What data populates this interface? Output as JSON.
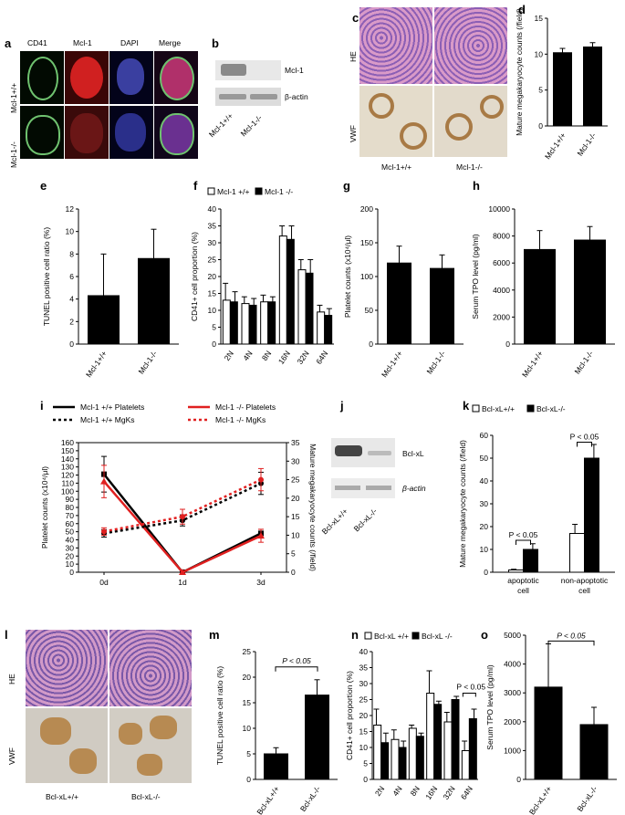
{
  "panel_labels": {
    "a": "a",
    "b": "b",
    "c": "c",
    "d": "d",
    "e": "e",
    "f": "f",
    "g": "g",
    "h": "h",
    "i": "i",
    "j": "j",
    "k": "k",
    "l": "l",
    "m": "m",
    "n": "n",
    "o": "o"
  },
  "panel_a": {
    "columns": [
      "CD41",
      "Mcl-1",
      "DAPI",
      "Merge"
    ],
    "rows": [
      "Mcl-1+/+",
      "Mcl-1-/-"
    ]
  },
  "panel_b": {
    "bands": [
      "Mcl-1",
      "β-actin"
    ],
    "lanes": [
      "Mcl-1+/+",
      "Mcl-1-/-"
    ]
  },
  "panel_c": {
    "rows": [
      "HE",
      "VWF"
    ],
    "columns": [
      "Mcl-1+/+",
      "Mcl-1-/-"
    ]
  },
  "panel_j": {
    "bands": [
      "Bcl-xL",
      "β-actin"
    ],
    "lanes": [
      "Bcl-xL+/+",
      "Bcl-xL-/-"
    ]
  },
  "panel_l": {
    "rows": [
      "HE",
      "VWF"
    ],
    "columns": [
      "Bcl-xL+/+",
      "Bcl-xL-/-"
    ]
  },
  "colors": {
    "bar_dark": "#000000",
    "bar_light": "#ffffff",
    "mcl_red": "#e02020",
    "he_pink": "#c77ab8",
    "vwf_brown": "#b08a55"
  },
  "chart_data": [
    {
      "id": "d",
      "type": "bar",
      "categories": [
        "Mcl-1+/+",
        "Mcl-1-/-"
      ],
      "values": [
        10.2,
        11.0
      ],
      "errors": [
        0.6,
        0.6
      ],
      "ylabel": "Mature megakaryocyte counts (/field)",
      "ylim": [
        0,
        15
      ],
      "yticks": [
        0,
        5,
        10,
        15
      ],
      "colors": [
        "#000000",
        "#000000"
      ]
    },
    {
      "id": "e",
      "type": "bar",
      "categories": [
        "Mcl-1+/+",
        "Mcl-1-/-"
      ],
      "values": [
        4.3,
        7.6
      ],
      "errors": [
        3.7,
        2.6
      ],
      "ylabel": "TUNEL positive cell ratio (%)",
      "ylim": [
        0,
        12
      ],
      "yticks": [
        0,
        2,
        4,
        6,
        8,
        10,
        12
      ],
      "colors": [
        "#000000",
        "#000000"
      ]
    },
    {
      "id": "f",
      "type": "bar",
      "categories": [
        "2N",
        "4N",
        "8N",
        "16N",
        "32N",
        "64N"
      ],
      "legend": [
        "Mcl-1 +/+",
        "Mcl-1 -/-"
      ],
      "series": [
        {
          "name": "Mcl-1 +/+",
          "values": [
            13,
            12,
            12.5,
            32,
            22,
            9.5
          ],
          "errors": [
            5,
            2,
            2,
            3,
            3,
            2
          ]
        },
        {
          "name": "Mcl-1 -/-",
          "values": [
            12.5,
            11.5,
            12.5,
            31,
            21,
            8.5
          ],
          "errors": [
            3,
            2,
            1.5,
            4,
            4,
            2
          ]
        }
      ],
      "ylabel": "CD41+ cell proportion (%)",
      "ylim": [
        0,
        40
      ],
      "yticks": [
        0,
        5,
        10,
        15,
        20,
        25,
        30,
        35,
        40
      ]
    },
    {
      "id": "g",
      "type": "bar",
      "categories": [
        "Mcl-1+/+",
        "Mcl-1-/-"
      ],
      "values": [
        120,
        112
      ],
      "errors": [
        25,
        20
      ],
      "ylabel": "Platelet counts (x10⁴/μl)",
      "ylim": [
        0,
        200
      ],
      "yticks": [
        0,
        50,
        100,
        150,
        200
      ],
      "colors": [
        "#000000",
        "#000000"
      ]
    },
    {
      "id": "h",
      "type": "bar",
      "categories": [
        "Mcl-1+/+",
        "Mcl-1-/-"
      ],
      "values": [
        7000,
        7700
      ],
      "errors": [
        1400,
        1000
      ],
      "ylabel": "Serum TPO level (pg/ml)",
      "ylim": [
        0,
        10000
      ],
      "yticks": [
        0,
        2000,
        4000,
        6000,
        8000,
        10000
      ],
      "colors": [
        "#000000",
        "#000000"
      ]
    },
    {
      "id": "i",
      "type": "line",
      "x": [
        "0d",
        "1d",
        "3d"
      ],
      "ylabel": "Platelet counts (x10⁴/μl)",
      "ylabel2": "Mature megakaryocyte counts (/field)",
      "ylim": [
        0,
        160
      ],
      "yticks": [
        0,
        10,
        20,
        30,
        40,
        50,
        60,
        70,
        80,
        90,
        100,
        110,
        120,
        130,
        140,
        150,
        160
      ],
      "ylim2": [
        0,
        35
      ],
      "yticks2": [
        0,
        5,
        10,
        15,
        20,
        25,
        30,
        35
      ],
      "series": [
        {
          "name": "Mcl-1 +/+ Platelets",
          "axis": "left",
          "values": [
            121,
            0,
            48
          ],
          "errors": [
            22,
            0,
            5
          ],
          "color": "#000000",
          "dash": false,
          "marker": "square"
        },
        {
          "name": "Mcl-1 -/- Platelets",
          "axis": "left",
          "values": [
            112,
            0,
            45
          ],
          "errors": [
            20,
            0,
            8
          ],
          "color": "#e02020",
          "dash": false,
          "marker": "triangle"
        },
        {
          "name": "Mcl-1 +/+ MgKs",
          "axis": "right",
          "values": [
            10.5,
            14,
            24
          ],
          "errors": [
            1,
            1.5,
            3
          ],
          "color": "#000000",
          "dash": true,
          "marker": "circle"
        },
        {
          "name": "Mcl-1 -/- MgKs",
          "axis": "right",
          "values": [
            11,
            15,
            25
          ],
          "errors": [
            1,
            2,
            3
          ],
          "color": "#e02020",
          "dash": true,
          "marker": "circle"
        }
      ]
    },
    {
      "id": "k",
      "type": "bar",
      "categories": [
        "apoptotic cell",
        "non-apoptotic cell"
      ],
      "legend": [
        "Bcl-xL+/+",
        "Bcl-xL-/-"
      ],
      "series": [
        {
          "name": "Bcl-xL+/+",
          "values": [
            1,
            17
          ],
          "errors": [
            0.3,
            4
          ]
        },
        {
          "name": "Bcl-xL-/-",
          "values": [
            10,
            50
          ],
          "errors": [
            2.5,
            6
          ]
        }
      ],
      "annotations": [
        "P < 0.05",
        "P < 0.05"
      ],
      "ylabel": "Mature megakaryocyte counts (/field)",
      "ylim": [
        0,
        60
      ],
      "yticks": [
        0,
        10,
        20,
        30,
        40,
        50,
        60
      ]
    },
    {
      "id": "m",
      "type": "bar",
      "categories": [
        "Bcl-xL+/+",
        "Bcl-xL-/-"
      ],
      "values": [
        5,
        16.5
      ],
      "errors": [
        1.2,
        3
      ],
      "annotations": [
        "P < 0.05"
      ],
      "ylabel": "TUNEL positive cell ratio (%)",
      "ylim": [
        0,
        25
      ],
      "yticks": [
        0,
        5,
        10,
        15,
        20,
        25
      ]
    },
    {
      "id": "n",
      "type": "bar",
      "categories": [
        "2N",
        "4N",
        "8N",
        "16N",
        "32N",
        "64N"
      ],
      "legend": [
        "Bcl-xL +/+",
        "Bcl-xL -/-"
      ],
      "series": [
        {
          "name": "Bcl-xL +/+",
          "values": [
            17,
            12.5,
            16,
            27,
            18,
            9
          ],
          "errors": [
            5,
            3,
            1,
            7,
            3,
            3
          ]
        },
        {
          "name": "Bcl-xL -/-",
          "values": [
            11.5,
            10,
            13.5,
            23.5,
            25,
            19
          ],
          "errors": [
            3,
            2,
            1,
            1,
            1,
            3
          ]
        }
      ],
      "annotations": [
        "P < 0.05"
      ],
      "ylabel": "CD41+ cell proportion (%)",
      "ylim": [
        0,
        40
      ],
      "yticks": [
        0,
        5,
        10,
        15,
        20,
        25,
        30,
        35,
        40
      ]
    },
    {
      "id": "o",
      "type": "bar",
      "categories": [
        "Bcl-xL+/+",
        "Bcl-xL-/-"
      ],
      "values": [
        3200,
        1900
      ],
      "errors": [
        1500,
        600
      ],
      "annotations": [
        "P < 0.05"
      ],
      "ylabel": "Serum TPO level (pg/ml)",
      "ylim": [
        0,
        5000
      ],
      "yticks": [
        0,
        1000,
        2000,
        3000,
        4000,
        5000
      ]
    }
  ]
}
